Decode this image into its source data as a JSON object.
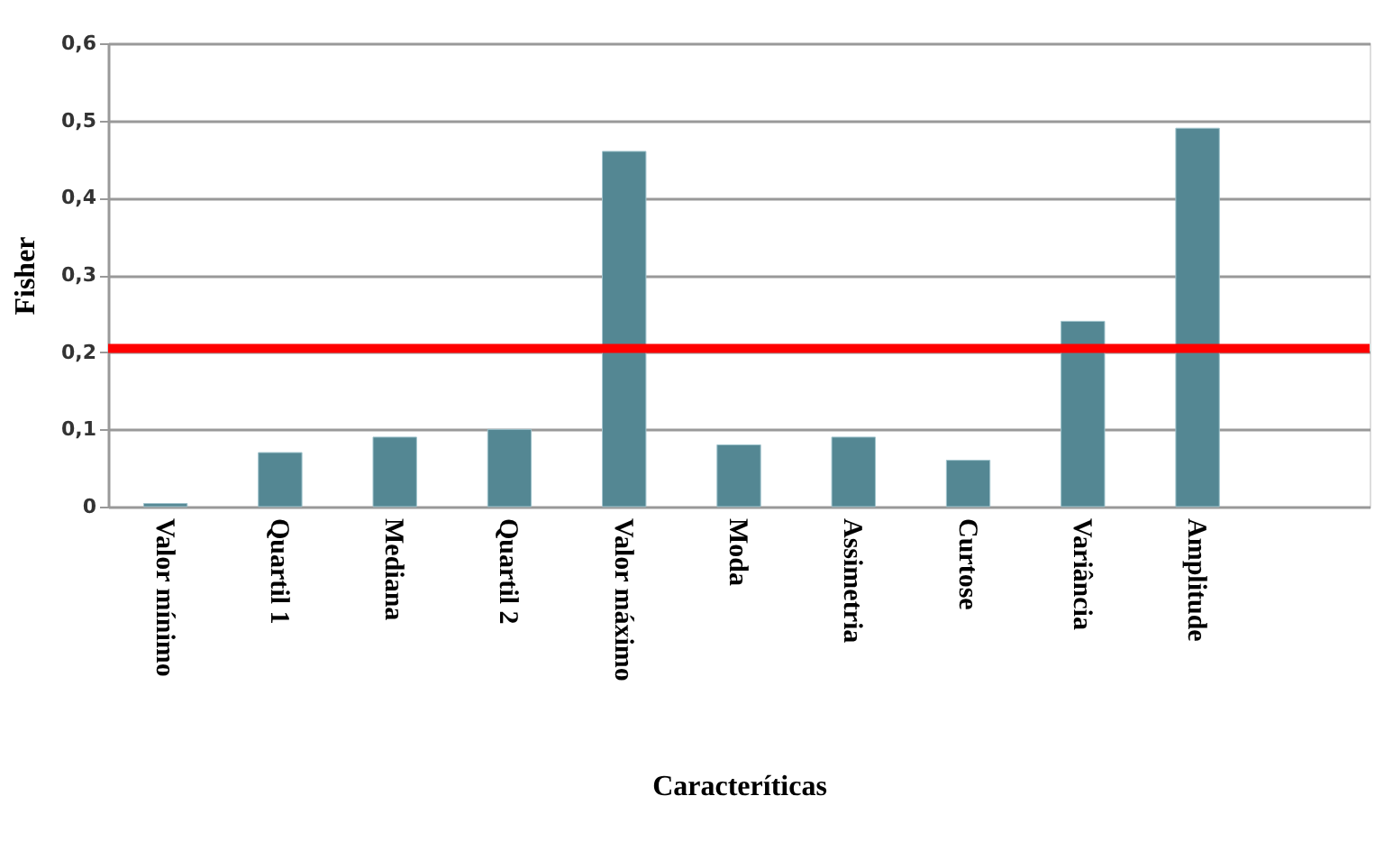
{
  "chart_data": {
    "type": "bar",
    "xlabel": "Caracteríticas",
    "ylabel": "Fisher",
    "categories": [
      "Valor mínimo",
      "Quartil 1",
      "Mediana",
      "Quartil 2",
      "Valor máximo",
      "Moda",
      "Assimetria",
      "Curtose",
      "Variância",
      "Amplitude",
      null
    ],
    "values": [
      0.004,
      0.07,
      0.09,
      0.1,
      0.46,
      0.08,
      0.09,
      0.06,
      0.24,
      0.49,
      null
    ],
    "color": "#548793",
    "ylim": [
      0,
      0.6
    ],
    "yticks": [
      {
        "value": 0,
        "label": "0"
      },
      {
        "value": 0.1,
        "label": "0,1"
      },
      {
        "value": 0.2,
        "label": "0,2"
      },
      {
        "value": 0.3,
        "label": "0,3"
      },
      {
        "value": 0.4,
        "label": "0,4"
      },
      {
        "value": 0.5,
        "label": "0,5"
      },
      {
        "value": 0.6,
        "label": "0,6"
      }
    ],
    "ref_lines": [
      {
        "axis": "y",
        "value": 0.205,
        "color": "#ff0000"
      }
    ],
    "grid": "y"
  }
}
